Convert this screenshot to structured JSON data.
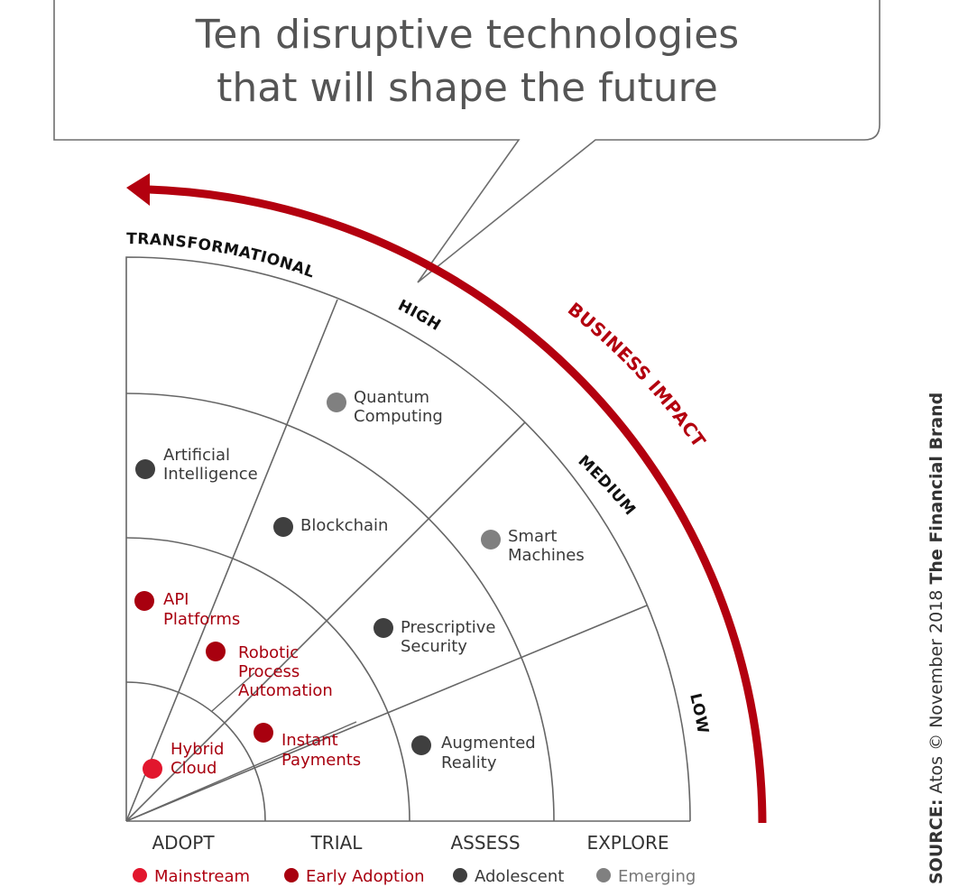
{
  "title": {
    "line1": "Ten disruptive technologies",
    "line2": "that will shape the future"
  },
  "axis": {
    "impact_label": "BUSINESS IMPACT",
    "rings": {
      "transformational": "TRANSFORMATIONAL",
      "high": "HIGH",
      "medium": "MEDIUM",
      "low": "LOW"
    },
    "columns": [
      "ADOPT",
      "TRIAL",
      "ASSESS",
      "EXPLORE"
    ]
  },
  "colors": {
    "mainstream": "#e2162d",
    "early_adoption": "#a8000f",
    "adolescent": "#3f3f3f",
    "emerging": "#808080",
    "arrow": "#b3000f",
    "grid": "#666666"
  },
  "technologies": [
    {
      "name_line1": "Quantum",
      "name_line2": "Computing",
      "status": "emerging"
    },
    {
      "name_line1": "Artificial",
      "name_line2": "Intelligence",
      "status": "adolescent"
    },
    {
      "name_line1": "Blockchain",
      "name_line2": "",
      "status": "adolescent"
    },
    {
      "name_line1": "Smart",
      "name_line2": "Machines",
      "status": "emerging"
    },
    {
      "name_line1": "API",
      "name_line2": "Platforms",
      "status": "early_adoption"
    },
    {
      "name_line1": "Prescriptive",
      "name_line2": "Security",
      "status": "adolescent"
    },
    {
      "name_line1": "Robotic",
      "name_line2": "Process",
      "name_line3": "Automation",
      "status": "early_adoption"
    },
    {
      "name_line1": "Instant",
      "name_line2": "Payments",
      "status": "early_adoption"
    },
    {
      "name_line1": "Augmented",
      "name_line2": "Reality",
      "status": "adolescent"
    },
    {
      "name_line1": "Hybrid",
      "name_line2": "Cloud",
      "status": "mainstream"
    }
  ],
  "legend": [
    {
      "label": "Mainstream",
      "status": "mainstream"
    },
    {
      "label": "Early Adoption",
      "status": "early_adoption"
    },
    {
      "label": "Adolescent",
      "status": "adolescent"
    },
    {
      "label": "Emerging",
      "status": "emerging"
    }
  ],
  "source": {
    "prefix": "SOURCE:",
    "text": "Atos © November 2018",
    "brand": "The Financial Brand"
  }
}
